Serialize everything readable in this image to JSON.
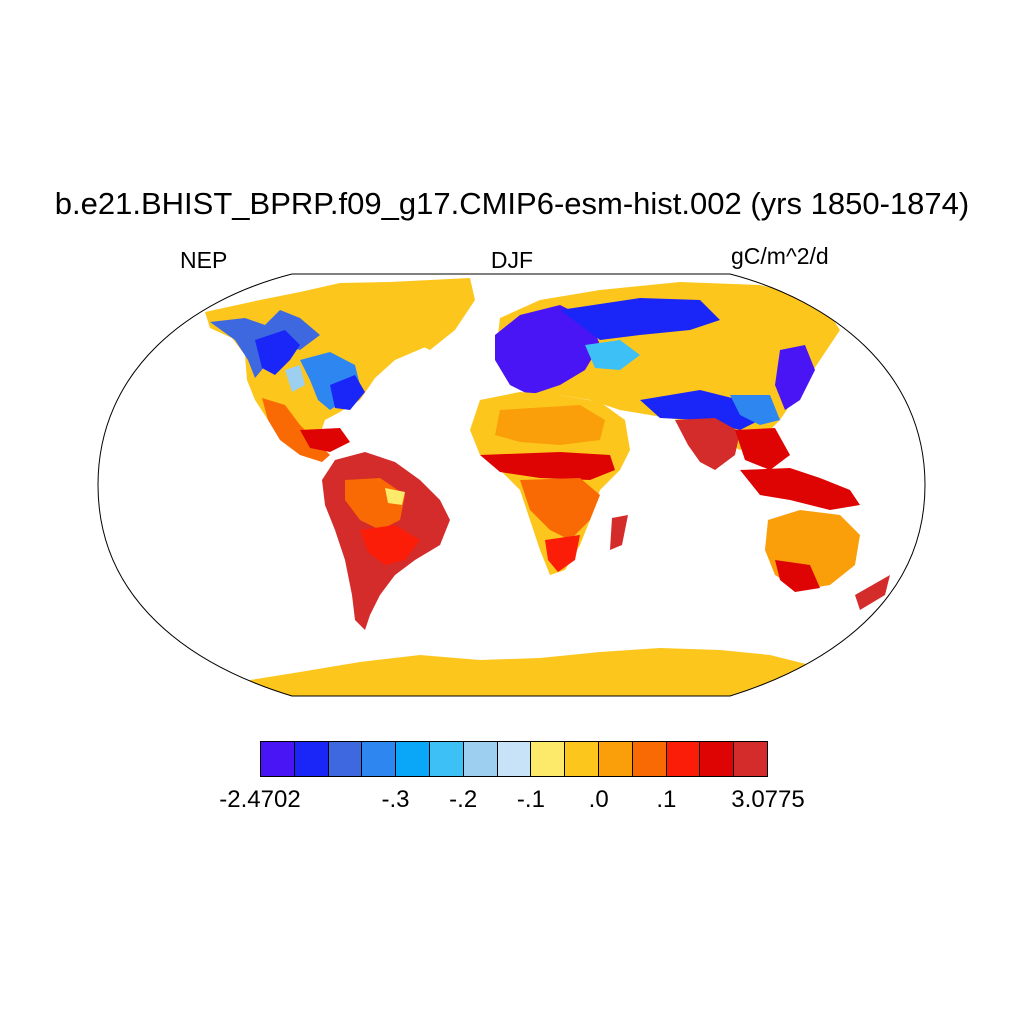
{
  "title": "b.e21.BHIST_BPRP.f09_g17.CMIP6-esm-hist.002 (yrs 1850-1874)",
  "left_label": "NEP",
  "center_label": "DJF",
  "right_label": "gC/m^2/d",
  "colors": {
    "ocean": "#ffffff",
    "outline": "#000000",
    "land_default": "#fcc61d"
  },
  "legend": {
    "colors": [
      "#4a15f5",
      "#1a25f8",
      "#3d68e0",
      "#2e86f0",
      "#0aa6f8",
      "#3cc0f5",
      "#9ccff0",
      "#c8e3f7",
      "#fde96a",
      "#fcc61d",
      "#fa9e0a",
      "#fa6a04",
      "#fb1d07",
      "#de0404",
      "#d42b2b"
    ],
    "labels": [
      {
        "text": "-2.4702",
        "boundary": 0
      },
      {
        "text": "-.3",
        "boundary": 4
      },
      {
        "text": "-.2",
        "boundary": 6
      },
      {
        "text": "-.1",
        "boundary": 8
      },
      {
        "text": ".0",
        "boundary": 10
      },
      {
        "text": ".1",
        "boundary": 12
      },
      {
        "text": "3.0775",
        "boundary": 15
      }
    ]
  }
}
